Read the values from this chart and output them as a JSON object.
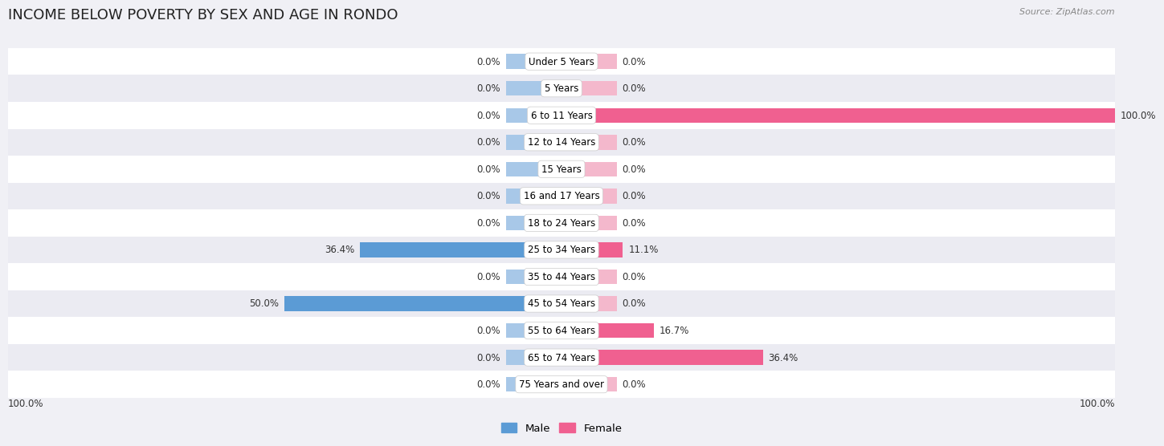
{
  "title": "INCOME BELOW POVERTY BY SEX AND AGE IN RONDO",
  "source": "Source: ZipAtlas.com",
  "categories": [
    "Under 5 Years",
    "5 Years",
    "6 to 11 Years",
    "12 to 14 Years",
    "15 Years",
    "16 and 17 Years",
    "18 to 24 Years",
    "25 to 34 Years",
    "35 to 44 Years",
    "45 to 54 Years",
    "55 to 64 Years",
    "65 to 74 Years",
    "75 Years and over"
  ],
  "male_values": [
    0.0,
    0.0,
    0.0,
    0.0,
    0.0,
    0.0,
    0.0,
    36.4,
    0.0,
    50.0,
    0.0,
    0.0,
    0.0
  ],
  "female_values": [
    0.0,
    0.0,
    100.0,
    0.0,
    0.0,
    0.0,
    0.0,
    11.1,
    0.0,
    0.0,
    16.7,
    36.4,
    0.0
  ],
  "male_color_light": "#a8c8e8",
  "female_color_light": "#f4b8cc",
  "male_color_strong": "#5b9bd5",
  "female_color_strong": "#f06090",
  "row_colors": [
    "#ffffff",
    "#ebebf2"
  ],
  "bg_color": "#f0f0f5",
  "max_value": 100.0,
  "stub_value": 10.0,
  "bar_height": 0.55,
  "title_fontsize": 13,
  "value_fontsize": 8.5,
  "category_fontsize": 8.5,
  "legend_fontsize": 9.5,
  "source_fontsize": 8
}
